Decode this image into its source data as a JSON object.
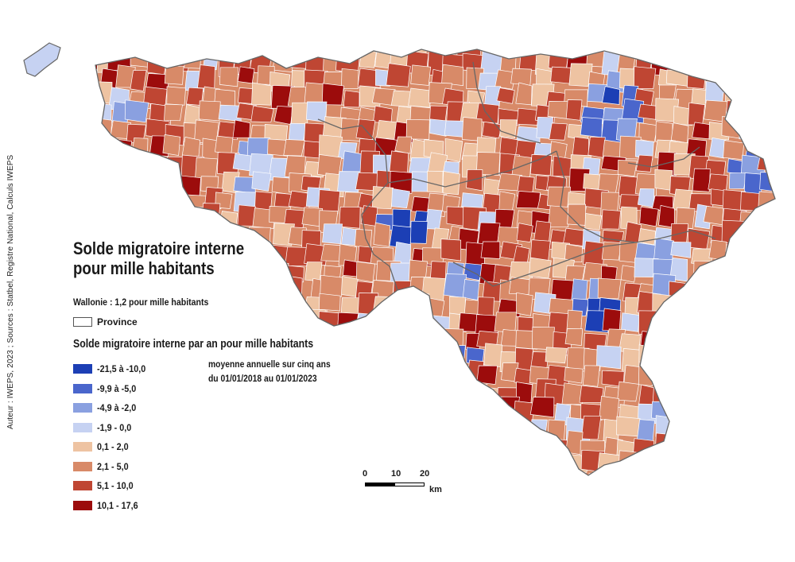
{
  "map": {
    "title_line1": "Solde migratoire interne",
    "title_line2": "pour mille habitants",
    "credit": "Auteur : IWEPS, 2023 ; Sources : Statbel, Registre National, Calculs IWEPS",
    "wallonie_note": "Wallonie : 1,2 pour mille habitants",
    "province_label": "Province",
    "legend_title": "Solde migratoire interne par an pour mille habitants",
    "legend_sub_line1": "moyenne annuelle sur cinq ans",
    "legend_sub_line2": "du 01/01/2018 au 01/01/2023",
    "legend": [
      {
        "label": "-21,5 à -10,0",
        "color": "#1c3fb5"
      },
      {
        "label": "-9,9 à -5,0",
        "color": "#4a66cc"
      },
      {
        "label": "-4,9 à -2,0",
        "color": "#8aa0e0"
      },
      {
        "label": "-1,9 - 0,0",
        "color": "#c6d2f2"
      },
      {
        "label": "0,1 - 2,0",
        "color": "#eec3a2"
      },
      {
        "label": "2,1 - 5,0",
        "color": "#d88a68"
      },
      {
        "label": "5,1 - 10,0",
        "color": "#bf4633"
      },
      {
        "label": "10,1 - 17,6",
        "color": "#9c0c0c"
      }
    ],
    "scale": {
      "t0": "0",
      "t1": "10",
      "t2": "20",
      "unit": "km"
    }
  }
}
